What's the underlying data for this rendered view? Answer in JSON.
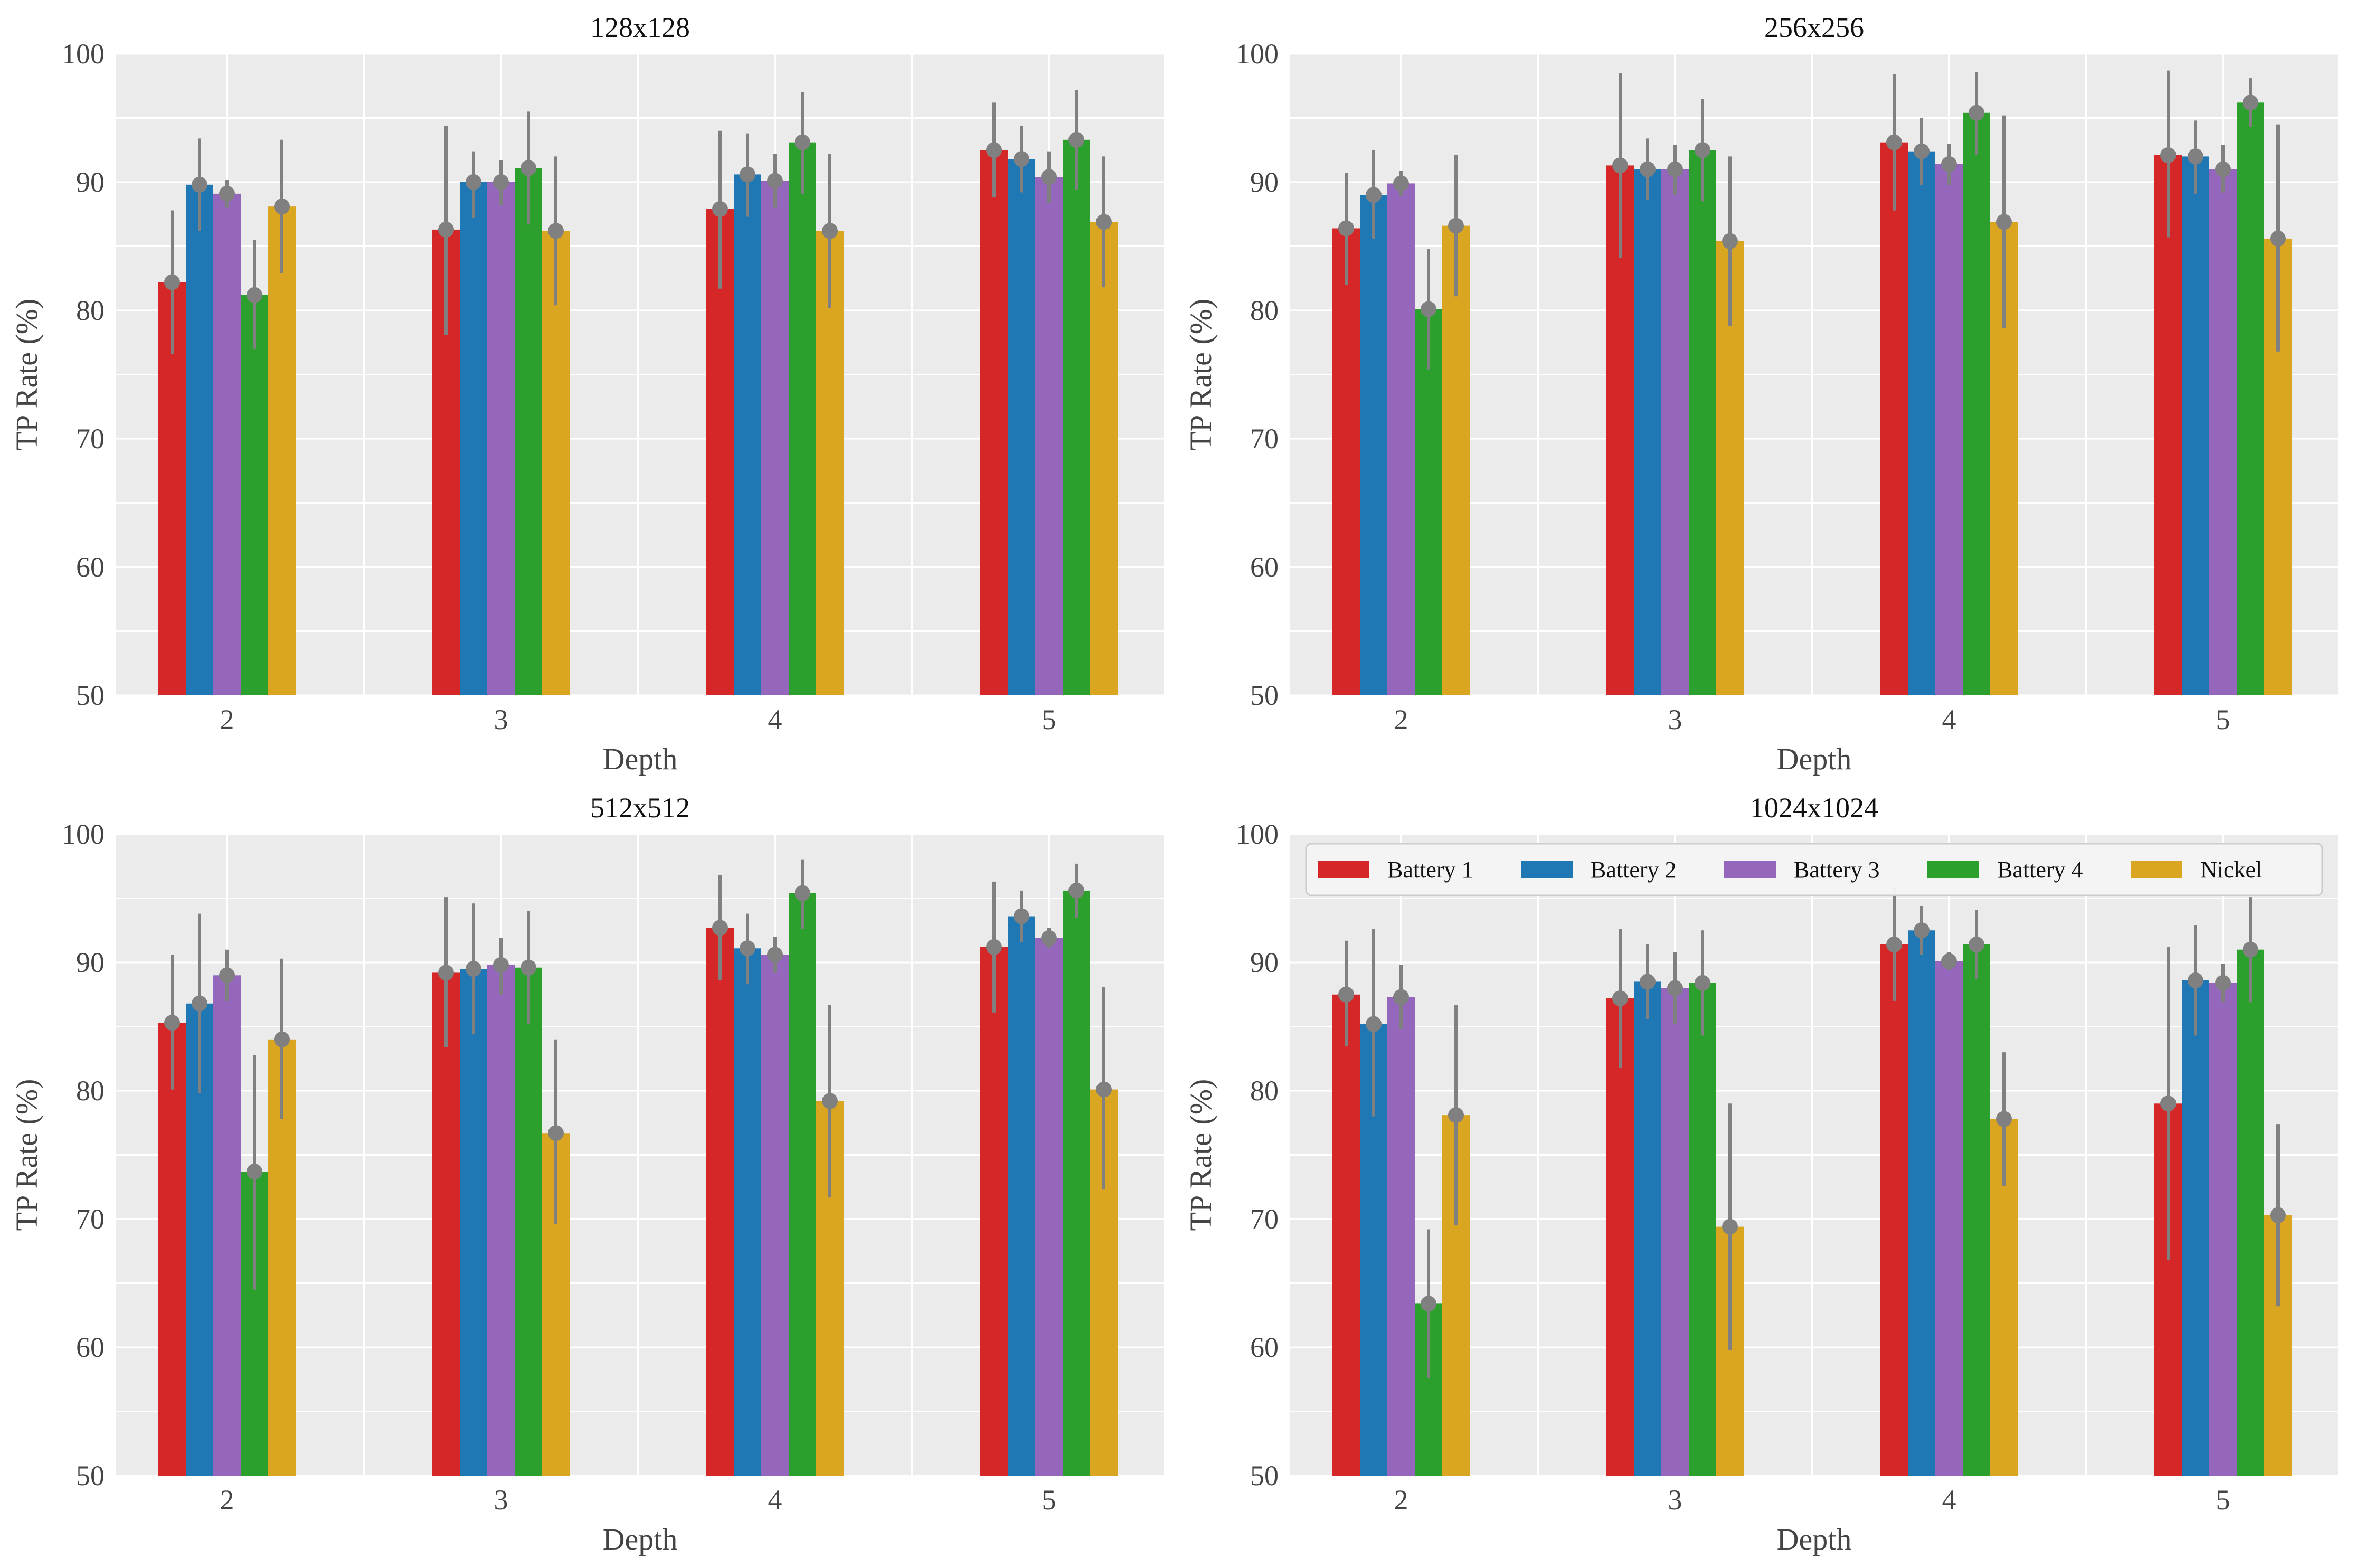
{
  "chart_data": [
    {
      "type": "bar",
      "title": "128x128",
      "xlabel": "Depth",
      "ylabel": "TP Rate (%)",
      "ylim": [
        50,
        100
      ],
      "yticks": [
        "50",
        "60",
        "70",
        "80",
        "90",
        "100"
      ],
      "categories": [
        "2",
        "3",
        "4",
        "5"
      ],
      "grid": true,
      "series": [
        {
          "name": "Battery 1",
          "color": "#d62728",
          "values": [
            82.2,
            86.3,
            87.9,
            92.5
          ],
          "err_low": [
            76.6,
            78.1,
            81.7,
            88.8
          ],
          "err_high": [
            87.8,
            94.4,
            94.0,
            96.2
          ]
        },
        {
          "name": "Battery 2",
          "color": "#1f77b4",
          "values": [
            89.8,
            90.0,
            90.6,
            91.8
          ],
          "err_low": [
            86.2,
            87.2,
            87.3,
            89.2
          ],
          "err_high": [
            93.4,
            92.4,
            93.8,
            94.4
          ]
        },
        {
          "name": "Battery 3",
          "color": "#9467bd",
          "values": [
            89.1,
            90.0,
            90.1,
            90.4
          ],
          "err_low": [
            88.0,
            88.2,
            88.0,
            88.4
          ],
          "err_high": [
            90.2,
            91.7,
            92.2,
            92.4
          ]
        },
        {
          "name": "Battery 4",
          "color": "#2ca02c",
          "values": [
            81.2,
            91.1,
            93.1,
            93.3
          ],
          "err_low": [
            77.0,
            86.7,
            89.1,
            89.4
          ],
          "err_high": [
            85.5,
            95.5,
            97.0,
            97.2
          ]
        },
        {
          "name": "Nickel",
          "color": "#daa520",
          "values": [
            88.1,
            86.2,
            86.2,
            86.9
          ],
          "err_low": [
            82.9,
            80.4,
            80.2,
            81.8
          ],
          "err_high": [
            93.3,
            92.0,
            92.2,
            92.0
          ]
        }
      ]
    },
    {
      "type": "bar",
      "title": "256x256",
      "xlabel": "Depth",
      "ylabel": "TP Rate (%)",
      "ylim": [
        50,
        100
      ],
      "yticks": [
        "50",
        "60",
        "70",
        "80",
        "90",
        "100"
      ],
      "categories": [
        "2",
        "3",
        "4",
        "5"
      ],
      "grid": true,
      "series": [
        {
          "name": "Battery 1",
          "color": "#d62728",
          "values": [
            86.4,
            91.3,
            93.1,
            92.1
          ],
          "err_low": [
            82.0,
            84.1,
            87.8,
            85.7
          ],
          "err_high": [
            90.7,
            98.5,
            98.4,
            98.7
          ]
        },
        {
          "name": "Battery 2",
          "color": "#1f77b4",
          "values": [
            89.0,
            91.0,
            92.4,
            92.0
          ],
          "err_low": [
            85.6,
            88.6,
            89.8,
            89.1
          ],
          "err_high": [
            92.5,
            93.4,
            95.0,
            94.8
          ]
        },
        {
          "name": "Battery 3",
          "color": "#9467bd",
          "values": [
            89.9,
            91.0,
            91.4,
            91.0
          ],
          "err_low": [
            88.9,
            89.0,
            89.8,
            89.2
          ],
          "err_high": [
            90.9,
            92.9,
            93.0,
            92.9
          ]
        },
        {
          "name": "Battery 4",
          "color": "#2ca02c",
          "values": [
            80.1,
            92.5,
            95.4,
            96.2
          ],
          "err_low": [
            75.4,
            88.5,
            92.1,
            94.3
          ],
          "err_high": [
            84.8,
            96.5,
            98.6,
            98.1
          ]
        },
        {
          "name": "Nickel",
          "color": "#daa520",
          "values": [
            86.6,
            85.4,
            86.9,
            85.6
          ],
          "err_low": [
            81.1,
            78.8,
            78.6,
            76.8
          ],
          "err_high": [
            92.1,
            92.0,
            95.2,
            94.5
          ]
        }
      ]
    },
    {
      "type": "bar",
      "title": "512x512",
      "xlabel": "Depth",
      "ylabel": "TP Rate (%)",
      "ylim": [
        50,
        100
      ],
      "yticks": [
        "50",
        "60",
        "70",
        "80",
        "90",
        "100"
      ],
      "categories": [
        "2",
        "3",
        "4",
        "5"
      ],
      "grid": true,
      "series": [
        {
          "name": "Battery 1",
          "color": "#d62728",
          "values": [
            85.3,
            89.2,
            92.7,
            91.2
          ],
          "err_low": [
            80.1,
            83.4,
            88.6,
            86.1
          ],
          "err_high": [
            90.6,
            95.1,
            96.8,
            96.3
          ]
        },
        {
          "name": "Battery 2",
          "color": "#1f77b4",
          "values": [
            86.8,
            89.5,
            91.1,
            93.6
          ],
          "err_low": [
            79.8,
            84.4,
            88.3,
            91.6
          ],
          "err_high": [
            93.8,
            94.6,
            93.8,
            95.6
          ]
        },
        {
          "name": "Battery 3",
          "color": "#9467bd",
          "values": [
            89.0,
            89.8,
            90.6,
            91.9
          ],
          "err_low": [
            87.0,
            87.5,
            89.2,
            91.1
          ],
          "err_high": [
            91.0,
            91.9,
            92.0,
            92.7
          ]
        },
        {
          "name": "Battery 4",
          "color": "#2ca02c",
          "values": [
            73.7,
            89.6,
            95.4,
            95.6
          ],
          "err_low": [
            64.5,
            85.2,
            92.6,
            93.5
          ],
          "err_high": [
            82.8,
            94.0,
            98.0,
            97.7
          ]
        },
        {
          "name": "Nickel",
          "color": "#daa520",
          "values": [
            84.0,
            76.7,
            79.2,
            80.1
          ],
          "err_low": [
            77.8,
            69.6,
            71.7,
            72.3
          ],
          "err_high": [
            90.3,
            84.0,
            86.7,
            88.1
          ]
        }
      ]
    },
    {
      "type": "bar",
      "title": "1024x1024",
      "xlabel": "Depth",
      "ylabel": "TP Rate (%)",
      "ylim": [
        50,
        100
      ],
      "yticks": [
        "50",
        "60",
        "70",
        "80",
        "90",
        "100"
      ],
      "categories": [
        "2",
        "3",
        "4",
        "5"
      ],
      "grid": true,
      "legend": "top",
      "series": [
        {
          "name": "Battery 1",
          "color": "#d62728",
          "values": [
            87.5,
            87.2,
            91.4,
            79.0
          ],
          "err_low": [
            83.5,
            81.8,
            87.0,
            66.8
          ],
          "err_high": [
            91.7,
            92.6,
            95.8,
            91.2
          ]
        },
        {
          "name": "Battery 2",
          "color": "#1f77b4",
          "values": [
            85.2,
            88.5,
            92.5,
            88.6
          ],
          "err_low": [
            78.0,
            85.6,
            90.6,
            84.3
          ],
          "err_high": [
            92.6,
            91.4,
            94.4,
            92.9
          ]
        },
        {
          "name": "Battery 3",
          "color": "#9467bd",
          "values": [
            87.3,
            88.0,
            90.1,
            88.4
          ],
          "err_low": [
            84.8,
            85.2,
            89.4,
            86.9
          ],
          "err_high": [
            89.8,
            90.8,
            90.8,
            89.9
          ]
        },
        {
          "name": "Battery 4",
          "color": "#2ca02c",
          "values": [
            63.4,
            88.4,
            91.4,
            91.0
          ],
          "err_low": [
            57.6,
            84.3,
            88.7,
            86.9
          ],
          "err_high": [
            69.2,
            92.5,
            94.1,
            95.1
          ]
        },
        {
          "name": "Nickel",
          "color": "#daa520",
          "values": [
            78.1,
            69.4,
            77.8,
            70.3
          ],
          "err_low": [
            69.5,
            59.8,
            72.6,
            63.2
          ],
          "err_high": [
            86.7,
            79.0,
            83.0,
            77.4
          ]
        }
      ]
    }
  ]
}
